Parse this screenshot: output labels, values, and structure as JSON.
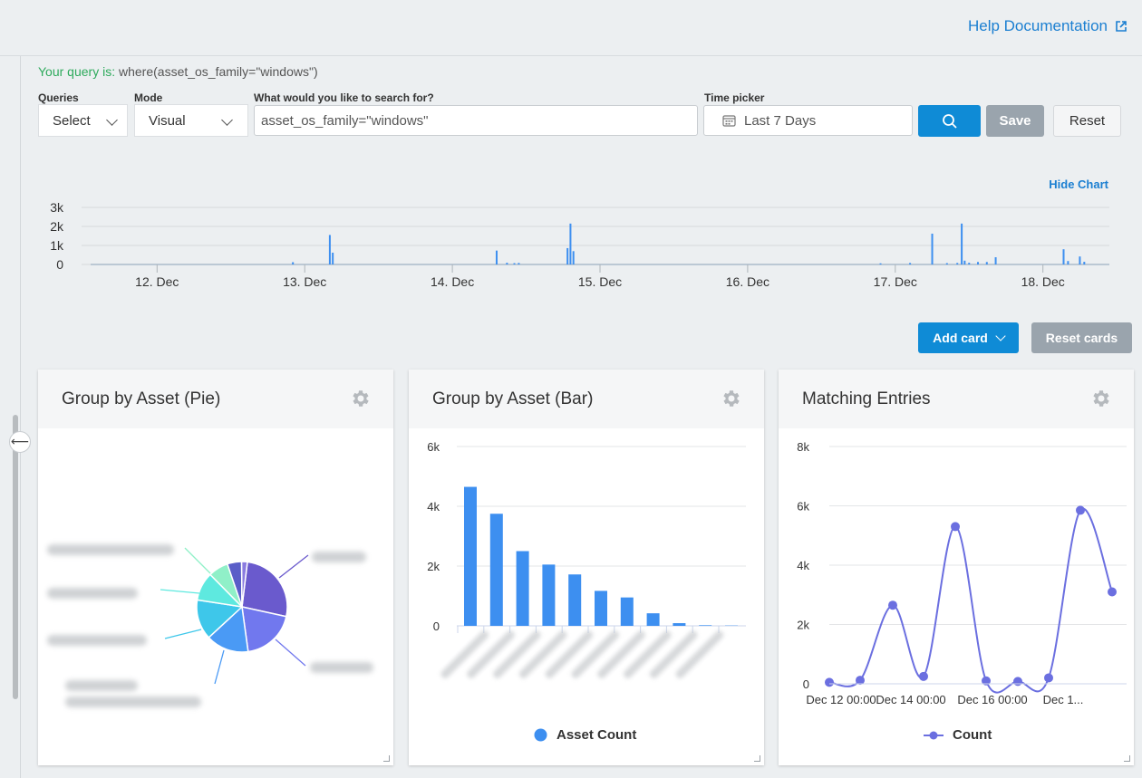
{
  "header": {
    "help_label": "Help Documentation"
  },
  "query": {
    "prefix": "Your query is:",
    "text": " where(asset_os_family=\"windows\")"
  },
  "toolbar": {
    "queries_label": "Queries",
    "queries_value": "Select",
    "mode_label": "Mode",
    "mode_value": "Visual",
    "search_label": "What would you like to search for?",
    "search_value": "asset_os_family=\"windows\"",
    "time_label": "Time picker",
    "time_value": "Last 7 Days",
    "save_label": "Save",
    "reset_label": "Reset"
  },
  "hide_chart_label": "Hide Chart",
  "cards_toolbar": {
    "add_card_label": "Add card",
    "reset_cards_label": "Reset cards"
  },
  "cards": {
    "pie": {
      "title": "Group by Asset (Pie)"
    },
    "bar": {
      "title": "Group by Asset (Bar)",
      "legend": "Asset Count"
    },
    "line": {
      "title": "Matching Entries",
      "legend": "Count"
    }
  },
  "colors": {
    "accent": "#0f8bd6",
    "link": "#1b7fd1",
    "bar_blue": "#3d8ff0",
    "line_purple": "#6b6fe0"
  },
  "chart_data": [
    {
      "type": "bar",
      "name": "timeline",
      "ylim": [
        0,
        3000
      ],
      "yticks": [
        "0",
        "1k",
        "2k",
        "3k"
      ],
      "x_dates": [
        "12. Dec",
        "13. Dec",
        "14. Dec",
        "15. Dec",
        "16. Dec",
        "17. Dec",
        "18. Dec"
      ],
      "x_range": [
        11.55,
        18.45
      ],
      "points": [
        {
          "x": 12.92,
          "y": 120
        },
        {
          "x": 13.17,
          "y": 1550
        },
        {
          "x": 13.19,
          "y": 620
        },
        {
          "x": 14.3,
          "y": 730
        },
        {
          "x": 14.37,
          "y": 90
        },
        {
          "x": 14.42,
          "y": 70
        },
        {
          "x": 14.45,
          "y": 80
        },
        {
          "x": 14.78,
          "y": 860
        },
        {
          "x": 14.8,
          "y": 2150
        },
        {
          "x": 14.82,
          "y": 700
        },
        {
          "x": 16.9,
          "y": 60
        },
        {
          "x": 17.1,
          "y": 80
        },
        {
          "x": 17.25,
          "y": 1620
        },
        {
          "x": 17.35,
          "y": 70
        },
        {
          "x": 17.42,
          "y": 80
        },
        {
          "x": 17.45,
          "y": 2150
        },
        {
          "x": 17.47,
          "y": 200
        },
        {
          "x": 17.5,
          "y": 90
        },
        {
          "x": 17.56,
          "y": 130
        },
        {
          "x": 17.62,
          "y": 130
        },
        {
          "x": 17.68,
          "y": 380
        },
        {
          "x": 18.14,
          "y": 800
        },
        {
          "x": 18.17,
          "y": 180
        },
        {
          "x": 18.25,
          "y": 420
        },
        {
          "x": 18.28,
          "y": 140
        }
      ]
    },
    {
      "type": "pie",
      "name": "group-by-asset-pie",
      "slices": [
        {
          "value": 26,
          "color": "#6a5acd"
        },
        {
          "value": 19,
          "color": "#7178ee"
        },
        {
          "value": 15,
          "color": "#4a9af5"
        },
        {
          "value": 14,
          "color": "#3ec7ea"
        },
        {
          "value": 10,
          "color": "#5ee9df"
        },
        {
          "value": 7,
          "color": "#90f0c8"
        },
        {
          "value": 5,
          "color": "#5a5ec8"
        },
        {
          "value": 2,
          "color": "#8a7be0"
        }
      ]
    },
    {
      "type": "bar",
      "name": "group-by-asset-bar",
      "series": [
        {
          "name": "Asset Count",
          "values": [
            4650,
            3750,
            2500,
            2050,
            1720,
            1170,
            950,
            420,
            90,
            20,
            10
          ]
        }
      ],
      "ylim": [
        0,
        6000
      ],
      "yticks": [
        "0",
        "2k",
        "4k",
        "6k"
      ]
    },
    {
      "type": "line",
      "name": "matching-entries",
      "series": [
        {
          "name": "Count",
          "values": [
            50,
            120,
            2650,
            250,
            5300,
            100,
            80,
            200,
            5850,
            3100
          ]
        }
      ],
      "ylim": [
        0,
        8000
      ],
      "yticks": [
        "0",
        "2k",
        "4k",
        "6k",
        "8k"
      ],
      "x_labels": [
        "Dec 12 00:00",
        "Dec 14 00:00",
        "Dec 16 00:00",
        "Dec 1..."
      ]
    }
  ]
}
